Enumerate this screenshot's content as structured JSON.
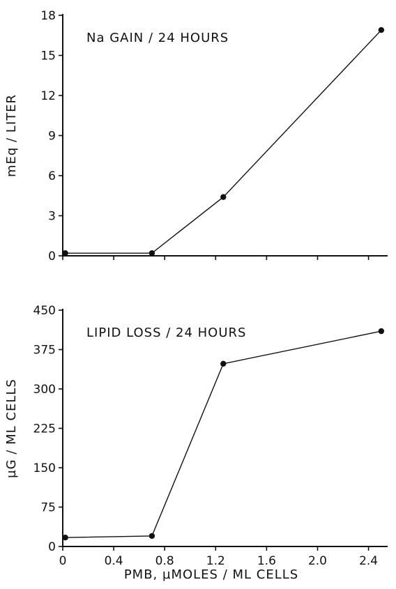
{
  "chart_data": [
    {
      "type": "line",
      "title": "Na GAIN / 24 HOURS",
      "ylabel": "mEq / LITER",
      "xlabel": "",
      "xlim": [
        0,
        2.55
      ],
      "ylim": [
        0,
        18
      ],
      "x_ticks": [
        0,
        0.4,
        0.8,
        1.2,
        1.6,
        2.0,
        2.4
      ],
      "y_ticks": [
        0,
        3,
        6,
        9,
        12,
        15,
        18
      ],
      "y_tick_labels": [
        "0",
        "3",
        "6",
        "9",
        "12",
        "15",
        "18"
      ],
      "show_x_tick_labels": false,
      "grid": false,
      "series": [
        {
          "x": [
            0.02,
            0.7,
            1.26,
            2.5
          ],
          "values": [
            0.2,
            0.2,
            4.4,
            16.9
          ]
        }
      ]
    },
    {
      "type": "line",
      "title": "LIPID LOSS / 24 HOURS",
      "ylabel": "µG / ML CELLS",
      "xlabel": "PMB, µMOLES / ML CELLS",
      "xlim": [
        0,
        2.55
      ],
      "ylim": [
        0,
        450
      ],
      "x_ticks": [
        0,
        0.4,
        0.8,
        1.2,
        1.6,
        2.0,
        2.4
      ],
      "x_tick_labels": [
        "0",
        "0.4",
        "0.8",
        "1.2",
        "1.6",
        "2.0",
        "2.4"
      ],
      "y_ticks": [
        0,
        75,
        150,
        225,
        300,
        375,
        450
      ],
      "y_tick_labels": [
        "0",
        "75",
        "150",
        "225",
        "300",
        "375",
        "450"
      ],
      "show_x_tick_labels": true,
      "grid": false,
      "series": [
        {
          "x": [
            0.02,
            0.7,
            1.26,
            2.5
          ],
          "values": [
            17,
            20,
            348,
            410
          ]
        }
      ]
    }
  ]
}
